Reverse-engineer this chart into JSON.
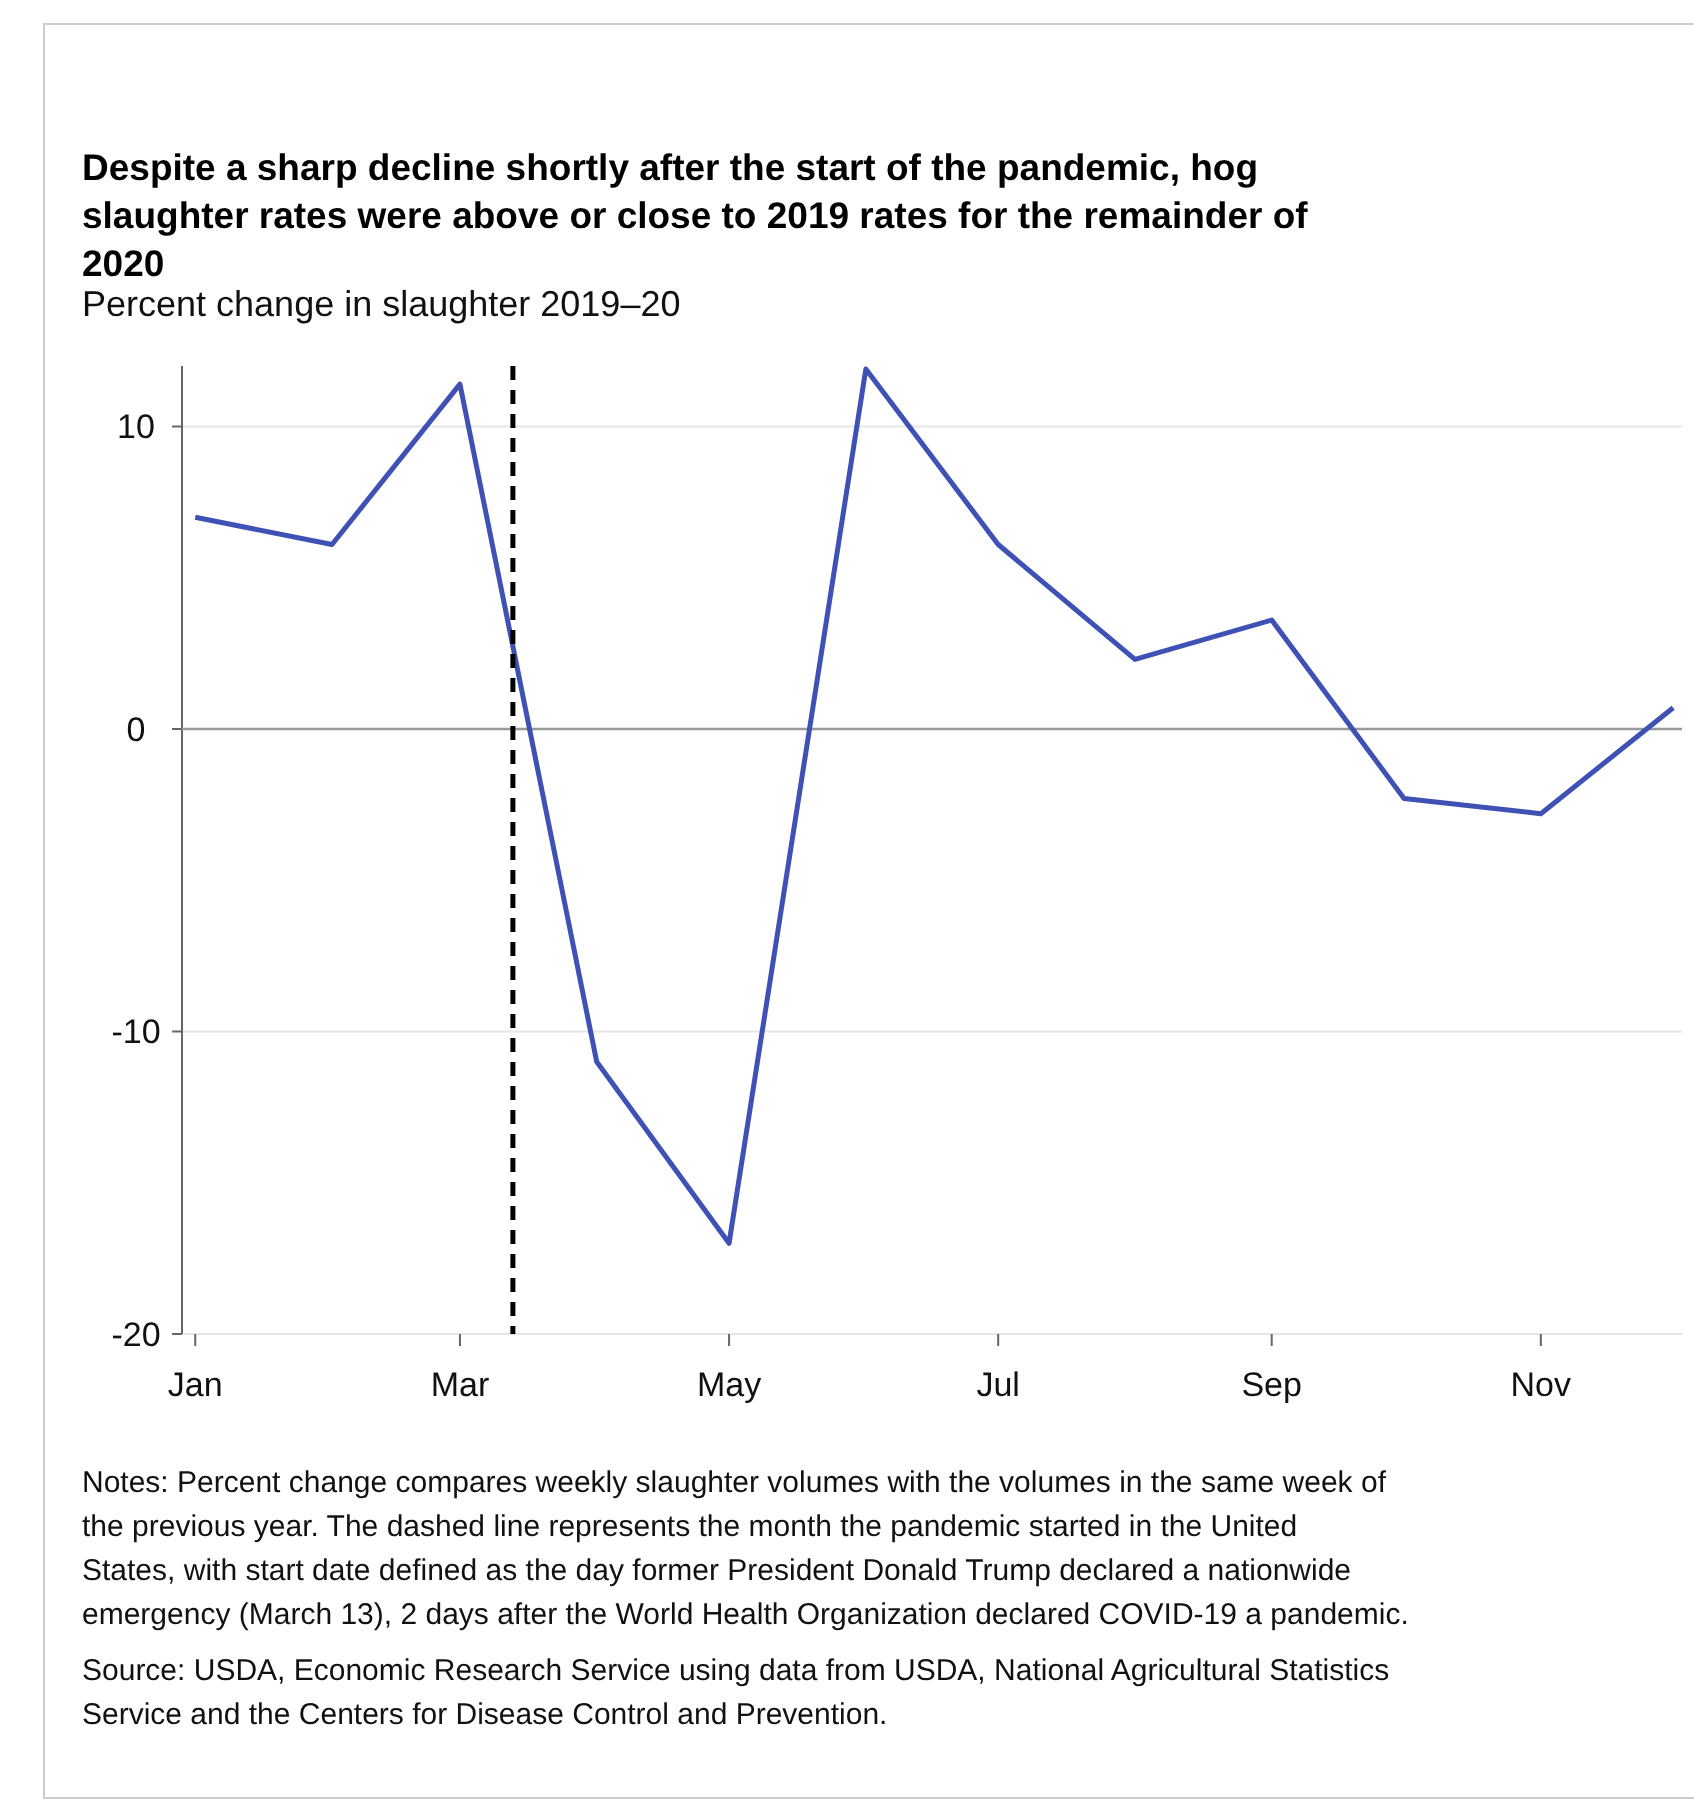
{
  "chart_data": {
    "type": "line",
    "title": "Despite a sharp decline shortly after the start of the pandemic, hog slaughter rates were above or close to 2019 rates for the remainder of 2020",
    "ylabel": "Percent change in slaughter 2019–20",
    "x": [
      "2020-01",
      "2020-02",
      "2020-03",
      "2020-04",
      "2020-05",
      "2020-06",
      "2020-07",
      "2020-08",
      "2020-09",
      "2020-10",
      "2020-11",
      "2020-12"
    ],
    "series": [
      {
        "color": "#3f51b5",
        "values": [
          7,
          6.1,
          11.4,
          -11,
          -17,
          11.9,
          6.1,
          2.3,
          3.6,
          -2.3,
          -2.8,
          0.7
        ]
      }
    ],
    "xlim": [
      "2019-12-29",
      "2020-12-03"
    ],
    "xticks": [
      {
        "value": "2020-01",
        "label": "Jan"
      },
      {
        "value": "2020-03",
        "label": "Mar"
      },
      {
        "value": "2020-05",
        "label": "May"
      },
      {
        "value": "2020-07",
        "label": "Jul"
      },
      {
        "value": "2020-09",
        "label": "Sep"
      },
      {
        "value": "2020-11",
        "label": "Nov"
      }
    ],
    "ylim": [
      -20,
      12
    ],
    "yticks": [
      -20,
      -10,
      0,
      10
    ],
    "grid": "y",
    "marker": "none",
    "line_style": "solid",
    "ref_lines": [
      {
        "axis": "y",
        "value": 0,
        "color": "#999999",
        "line_style": "solid"
      },
      {
        "axis": "x",
        "value": "2020-03-13",
        "color": "#000000",
        "line_style": "dashed"
      }
    ],
    "annotations": [
      "Notes: Percent change compares weekly slaughter volumes with the volumes in the same week of the previous year. The dashed line represents the month the pandemic started in the United States, with start date defined as the day former President Donald Trump declared a nationwide emergency (March 13), 2 days after the World Health Organization declared COVID-19 a pandemic.",
      "Source: USDA, Economic Research Service using data from USDA, National Agricultural Statistics Service and the Centers for Disease Control and Prevention."
    ]
  }
}
